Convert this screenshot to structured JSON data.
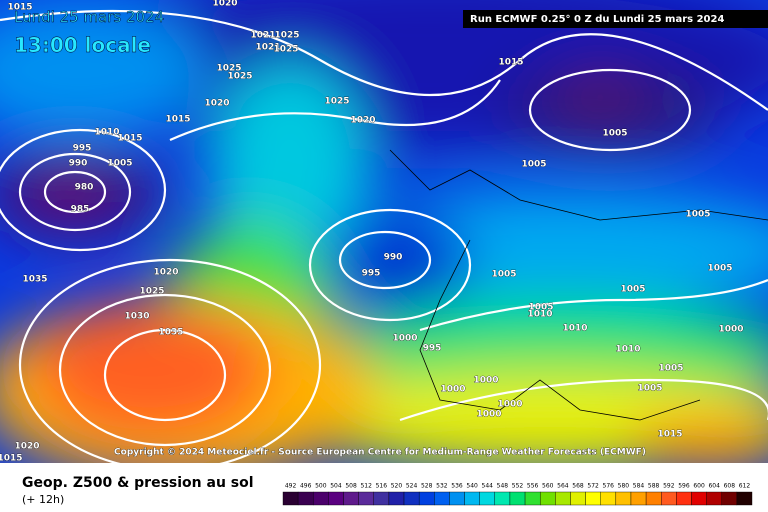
{
  "header": {
    "date": "Lundi 25 mars 2024",
    "time": "13:00 locale",
    "run": "Run ECMWF 0.25° 0 Z du Lundi 25 mars 2024"
  },
  "copyright": "Copyright © 2024 Meteociel.fr - Source European Centre for Medium-Range Weather Forecasts (ECMWF)",
  "footer": {
    "title": "Geop. Z500 & pression au sol",
    "lead": "(+ 12h)"
  },
  "isobar_labels": [
    "1015",
    "1020",
    "1021",
    "1025",
    "1021",
    "1025",
    "1025",
    "1025",
    "1020",
    "1015",
    "1025",
    "1020",
    "1015",
    "995",
    "990",
    "1010",
    "1015",
    "1005",
    "980",
    "985",
    "1005",
    "1005",
    "1005",
    "1005",
    "1005",
    "990",
    "995",
    "1005",
    "1005",
    "1010",
    "1010",
    "1010",
    "1000",
    "1035",
    "1020",
    "1025",
    "1030",
    "1035",
    "1000",
    "995",
    "1000",
    "1000",
    "1000",
    "1000",
    "1005",
    "1005",
    "1015",
    "1020",
    "1015"
  ],
  "scale": {
    "labels": [
      "492",
      "496",
      "500",
      "504",
      "508",
      "512",
      "516",
      "520",
      "524",
      "528",
      "532",
      "536",
      "540",
      "544",
      "548",
      "552",
      "556",
      "560",
      "564",
      "568",
      "572",
      "576",
      "580",
      "584",
      "588",
      "592",
      "596",
      "600",
      "604",
      "608",
      "612"
    ],
    "colors": [
      "#2a0032",
      "#3a0050",
      "#4b006b",
      "#5a0080",
      "#5f1a8c",
      "#5a2a9a",
      "#4030a0",
      "#2020a8",
      "#1030c0",
      "#0040e0",
      "#0060f0",
      "#0090f0",
      "#00b8f0",
      "#00d8e0",
      "#00e8b0",
      "#00e070",
      "#30e030",
      "#70e000",
      "#a8e800",
      "#e0f000",
      "#ffff00",
      "#ffe000",
      "#ffc000",
      "#ffa000",
      "#ff8000",
      "#ff5a20",
      "#ff3010",
      "#e00000",
      "#b00000",
      "#700000",
      "#200000"
    ]
  }
}
